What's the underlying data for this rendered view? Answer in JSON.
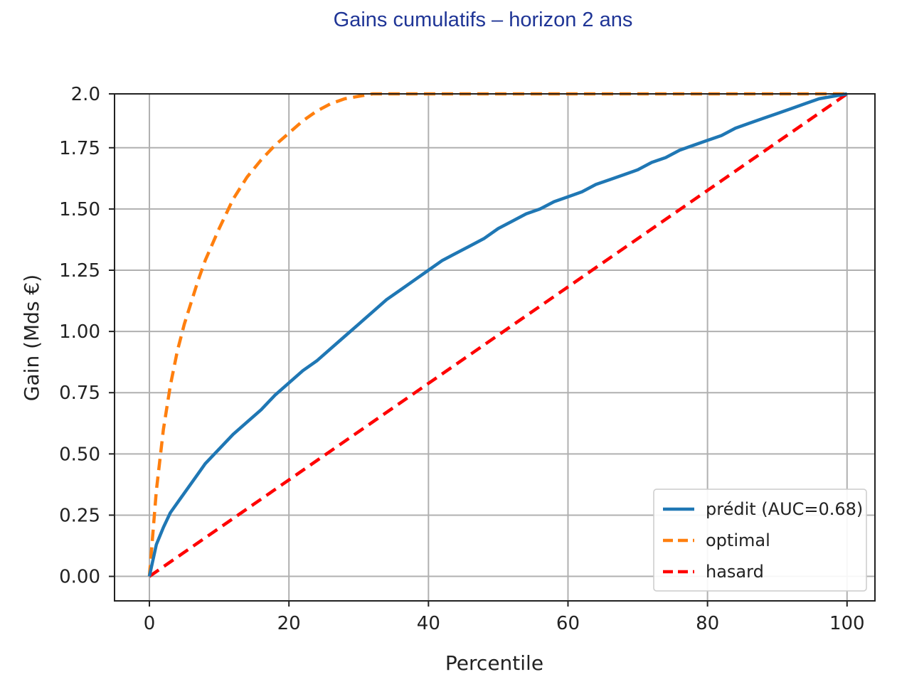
{
  "title": "Gains cumulatifs – horizon 2 ans",
  "chart_data": {
    "type": "line",
    "xlabel": "Percentile",
    "ylabel": "Gain (Mds €)",
    "xlim": [
      -5,
      104
    ],
    "ylim": [
      -0.1,
      1.97
    ],
    "x_ticks": [
      0,
      20,
      40,
      60,
      80,
      100
    ],
    "x_tick_labels": [
      "0",
      "20",
      "40",
      "60",
      "80",
      "100"
    ],
    "y_ticks": [
      0.0,
      0.25,
      0.5,
      0.75,
      1.0,
      1.25,
      1.5,
      1.75,
      1.97
    ],
    "y_tick_labels": [
      "0.00",
      "0.25",
      "0.50",
      "0.75",
      "1.00",
      "1.25",
      "1.50",
      "1.75",
      "2.0"
    ],
    "grid": true,
    "legend_position": "bottom-right",
    "series": [
      {
        "name": "prédit (AUC=0.68)",
        "color": "#1f77b4",
        "style": "solid",
        "x": [
          0,
          1,
          2,
          3,
          4,
          5,
          6,
          7,
          8,
          10,
          12,
          14,
          16,
          18,
          20,
          22,
          24,
          26,
          28,
          30,
          32,
          34,
          36,
          38,
          40,
          42,
          44,
          46,
          48,
          50,
          52,
          54,
          56,
          58,
          60,
          62,
          64,
          66,
          68,
          70,
          72,
          74,
          76,
          78,
          80,
          82,
          84,
          86,
          88,
          90,
          92,
          94,
          96,
          98,
          100
        ],
        "y": [
          0.0,
          0.13,
          0.2,
          0.26,
          0.3,
          0.34,
          0.38,
          0.42,
          0.46,
          0.52,
          0.58,
          0.63,
          0.68,
          0.74,
          0.79,
          0.84,
          0.88,
          0.93,
          0.98,
          1.03,
          1.08,
          1.13,
          1.17,
          1.21,
          1.25,
          1.29,
          1.32,
          1.35,
          1.38,
          1.42,
          1.45,
          1.48,
          1.5,
          1.53,
          1.55,
          1.57,
          1.6,
          1.62,
          1.64,
          1.66,
          1.69,
          1.71,
          1.74,
          1.76,
          1.78,
          1.8,
          1.83,
          1.85,
          1.87,
          1.89,
          1.91,
          1.93,
          1.95,
          1.96,
          1.97
        ]
      },
      {
        "name": "optimal",
        "color": "#ff7f0e",
        "style": "dashed",
        "x": [
          0,
          1,
          2,
          3,
          4,
          5,
          6,
          7,
          8,
          10,
          12,
          14,
          16,
          18,
          20,
          22,
          24,
          26,
          28,
          30,
          32,
          34,
          40,
          50,
          60,
          70,
          80,
          90,
          100
        ],
        "y": [
          0.0,
          0.35,
          0.6,
          0.78,
          0.92,
          1.03,
          1.12,
          1.21,
          1.29,
          1.42,
          1.54,
          1.63,
          1.7,
          1.76,
          1.81,
          1.86,
          1.9,
          1.93,
          1.95,
          1.96,
          1.97,
          1.97,
          1.97,
          1.97,
          1.97,
          1.97,
          1.97,
          1.97,
          1.97
        ]
      },
      {
        "name": "hasard",
        "color": "#ff0000",
        "style": "dashed",
        "x": [
          0,
          100
        ],
        "y": [
          0.0,
          1.97
        ]
      }
    ]
  }
}
